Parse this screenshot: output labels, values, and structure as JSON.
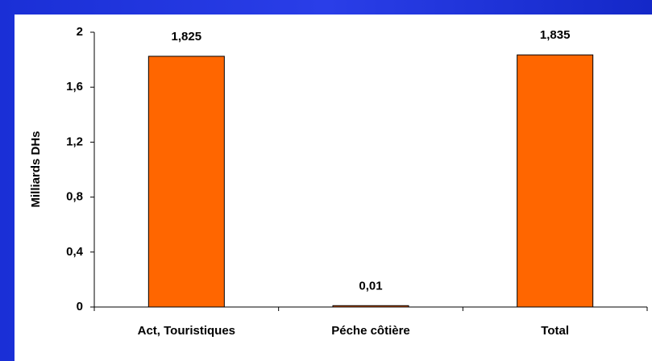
{
  "chart_data": {
    "type": "bar",
    "y_label": "Milliards DHs",
    "categories": [
      "Act, Touristiques",
      "Péche côtière",
      "Total"
    ],
    "values": [
      1.825,
      0.01,
      1.835
    ],
    "value_labels": [
      "1,825",
      "0,01",
      "1,835"
    ],
    "color": "#ff6600",
    "ylim": [
      0,
      2
    ],
    "yticks": [
      0,
      {
        "value": 0.4,
        "label": "0,4"
      },
      {
        "value": 0.8,
        "label": "0,8"
      },
      {
        "value": 1.2,
        "label": "1,2"
      },
      {
        "value": 1.6,
        "label": "1,6"
      },
      2
    ],
    "grid": false
  }
}
